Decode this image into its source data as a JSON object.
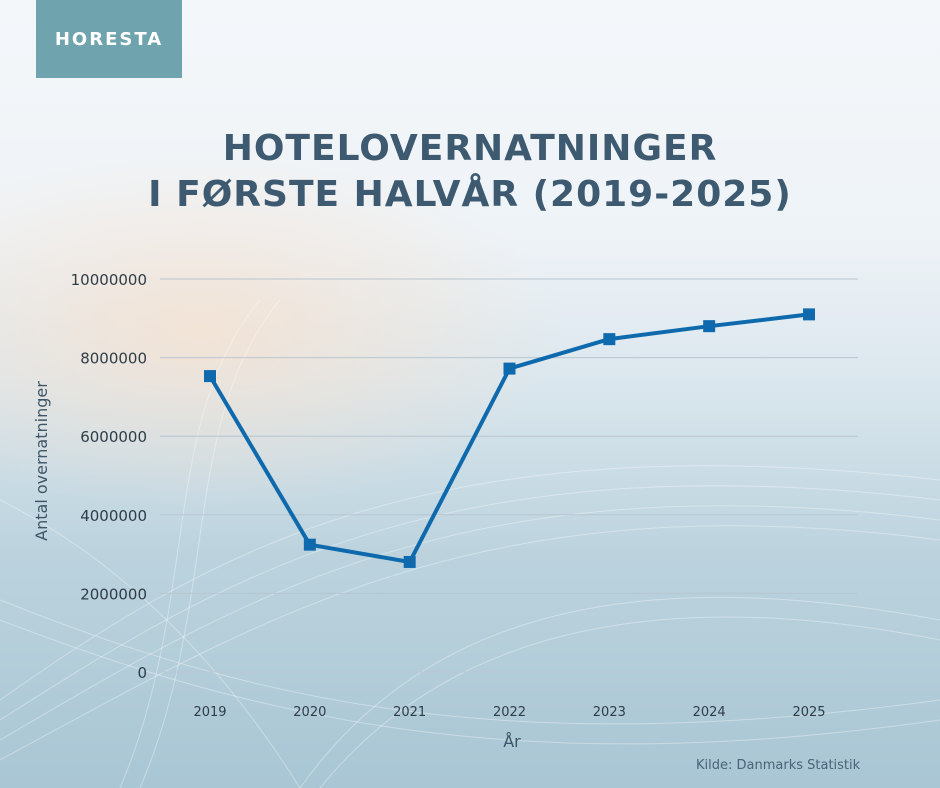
{
  "logo": {
    "text": "HORESTA"
  },
  "title": {
    "line1": "HOTELOVERNATNINGER",
    "line2": "I FØRSTE HALVÅR (2019-2025)"
  },
  "source": "Kilde: Danmarks Statistik",
  "colors": {
    "line": "#0e6aad",
    "title": "#3d5a70",
    "logo_bg": "#6fa3ad"
  },
  "chart_data": {
    "type": "line",
    "title": "HOTELOVERNATNINGER I FØRSTE HALVÅR (2019-2025)",
    "xlabel": "År",
    "ylabel": "Antal overnatninger",
    "categories": [
      "2019",
      "2020",
      "2021",
      "2022",
      "2023",
      "2024",
      "2025"
    ],
    "series": [
      {
        "values": [
          7530000,
          3240000,
          2800000,
          7720000,
          8470000,
          8800000,
          9100000
        ]
      }
    ],
    "ylim": [
      0,
      10000000
    ],
    "yticks": [
      "0",
      "2000000",
      "4000000",
      "6000000",
      "8000000",
      "10000000"
    ],
    "grid": true,
    "legend": "none",
    "marker": "square"
  }
}
